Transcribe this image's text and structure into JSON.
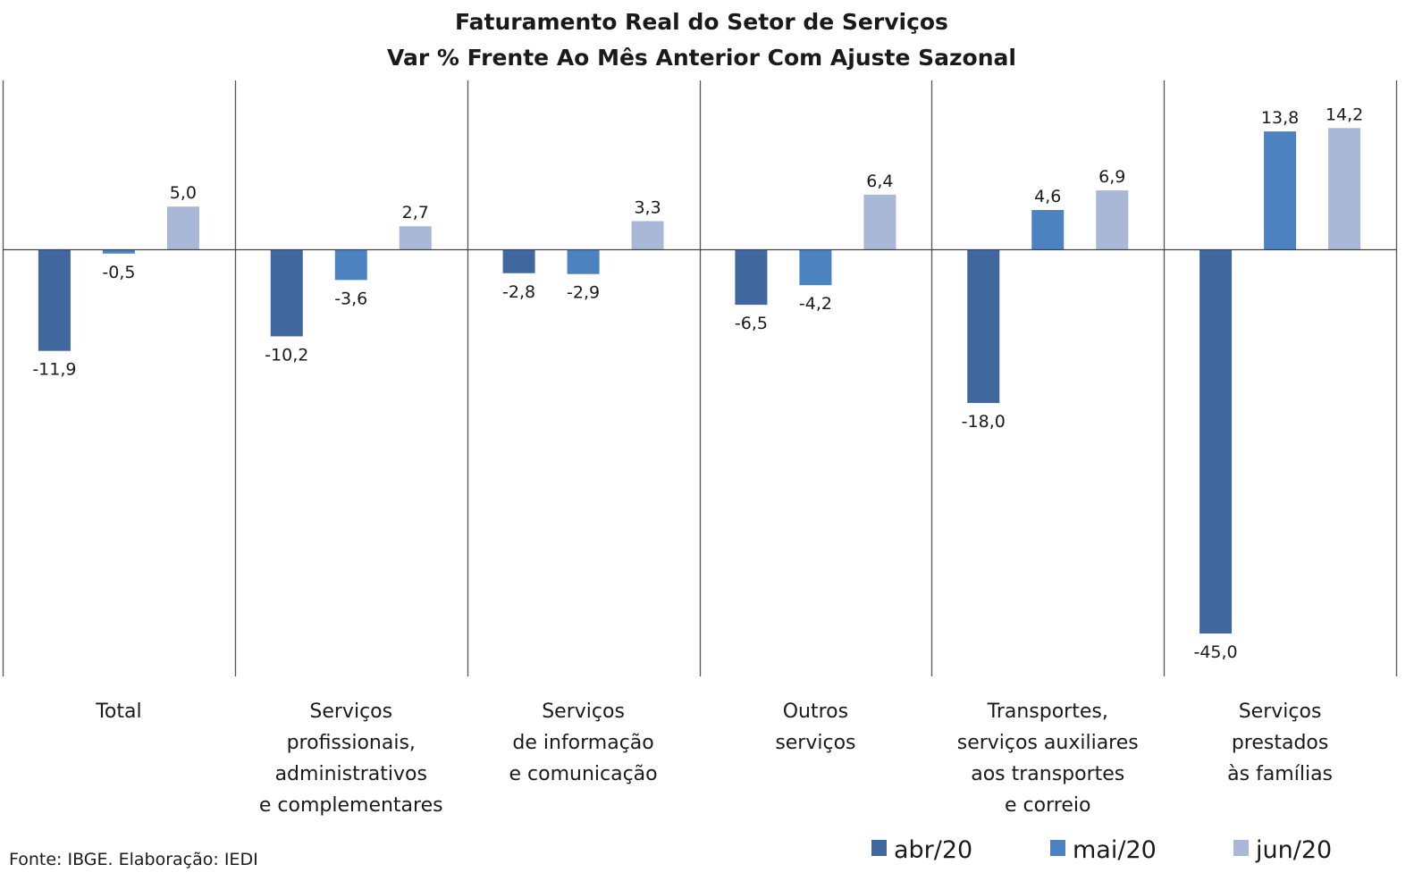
{
  "chart_data": {
    "type": "bar",
    "title": "Faturamento Real do Setor de Serviços",
    "subtitle": "Var % Frente Ao Mês  Anterior Com Ajuste Sazonal",
    "categories": [
      [
        "Total"
      ],
      [
        "Serviços",
        "profissionais,",
        "administrativos",
        "e complementares"
      ],
      [
        "Serviços",
        "de informação",
        "e comunicação"
      ],
      [
        "Outros",
        "serviços"
      ],
      [
        "Transportes,",
        "serviços auxiliares",
        "aos transportes",
        "e correio"
      ],
      [
        "Serviços",
        "prestados",
        "às famílias"
      ]
    ],
    "series": [
      {
        "name": "abr/20",
        "color": "#40689e",
        "values": [
          -11.9,
          -10.2,
          -2.8,
          -6.5,
          -18.0,
          -45.0
        ]
      },
      {
        "name": "mai/20",
        "color": "#4d82c0",
        "values": [
          -0.5,
          -3.6,
          -2.9,
          -4.2,
          4.6,
          13.8
        ]
      },
      {
        "name": "jun/20",
        "color": "#aab8d8",
        "values": [
          5.0,
          2.7,
          3.3,
          6.4,
          6.9,
          14.2
        ]
      }
    ],
    "ylim": [
      -50,
      20
    ],
    "grid": false,
    "legend_position": "bottom-right",
    "decimal_separator": ","
  },
  "source": "Fonte: IBGE. Elaboração: IEDI"
}
